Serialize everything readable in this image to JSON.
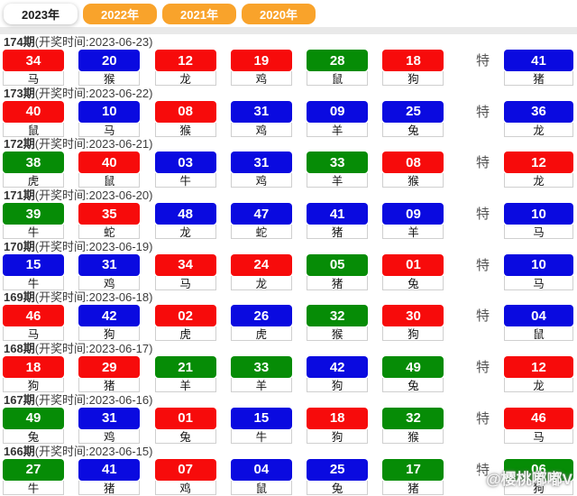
{
  "tabs": [
    {
      "label": "2023年",
      "active": true
    },
    {
      "label": "2022年",
      "active": false
    },
    {
      "label": "2021年",
      "active": false
    },
    {
      "label": "2020年",
      "active": false
    }
  ],
  "colors": {
    "red": "#f70b0b",
    "blue": "#0a0ae0",
    "green": "#068c06",
    "tab_orange": "#f9a32b"
  },
  "special_label": "特",
  "watermark": {
    "icon": "paw-icon",
    "text": "@樱桃嘟嘟V"
  },
  "rows": [
    {
      "period": "174期",
      "time": "(开奖时间:2023-06-23)",
      "numbers": [
        {
          "value": "34",
          "zodiac": "马",
          "color": "red"
        },
        {
          "value": "20",
          "zodiac": "猴",
          "color": "blue"
        },
        {
          "value": "12",
          "zodiac": "龙",
          "color": "red"
        },
        {
          "value": "19",
          "zodiac": "鸡",
          "color": "red"
        },
        {
          "value": "28",
          "zodiac": "鼠",
          "color": "green"
        },
        {
          "value": "18",
          "zodiac": "狗",
          "color": "red"
        }
      ],
      "special": {
        "value": "41",
        "zodiac": "猪",
        "color": "blue"
      }
    },
    {
      "period": "173期",
      "time": "(开奖时间:2023-06-22)",
      "numbers": [
        {
          "value": "40",
          "zodiac": "鼠",
          "color": "red"
        },
        {
          "value": "10",
          "zodiac": "马",
          "color": "blue"
        },
        {
          "value": "08",
          "zodiac": "猴",
          "color": "red"
        },
        {
          "value": "31",
          "zodiac": "鸡",
          "color": "blue"
        },
        {
          "value": "09",
          "zodiac": "羊",
          "color": "blue"
        },
        {
          "value": "25",
          "zodiac": "兔",
          "color": "blue"
        }
      ],
      "special": {
        "value": "36",
        "zodiac": "龙",
        "color": "blue"
      }
    },
    {
      "period": "172期",
      "time": "(开奖时间:2023-06-21)",
      "numbers": [
        {
          "value": "38",
          "zodiac": "虎",
          "color": "green"
        },
        {
          "value": "40",
          "zodiac": "鼠",
          "color": "red"
        },
        {
          "value": "03",
          "zodiac": "牛",
          "color": "blue"
        },
        {
          "value": "31",
          "zodiac": "鸡",
          "color": "blue"
        },
        {
          "value": "33",
          "zodiac": "羊",
          "color": "green"
        },
        {
          "value": "08",
          "zodiac": "猴",
          "color": "red"
        }
      ],
      "special": {
        "value": "12",
        "zodiac": "龙",
        "color": "red"
      }
    },
    {
      "period": "171期",
      "time": "(开奖时间:2023-06-20)",
      "numbers": [
        {
          "value": "39",
          "zodiac": "牛",
          "color": "green"
        },
        {
          "value": "35",
          "zodiac": "蛇",
          "color": "red"
        },
        {
          "value": "48",
          "zodiac": "龙",
          "color": "blue"
        },
        {
          "value": "47",
          "zodiac": "蛇",
          "color": "blue"
        },
        {
          "value": "41",
          "zodiac": "猪",
          "color": "blue"
        },
        {
          "value": "09",
          "zodiac": "羊",
          "color": "blue"
        }
      ],
      "special": {
        "value": "10",
        "zodiac": "马",
        "color": "blue"
      }
    },
    {
      "period": "170期",
      "time": "(开奖时间:2023-06-19)",
      "numbers": [
        {
          "value": "15",
          "zodiac": "牛",
          "color": "blue"
        },
        {
          "value": "31",
          "zodiac": "鸡",
          "color": "blue"
        },
        {
          "value": "34",
          "zodiac": "马",
          "color": "red"
        },
        {
          "value": "24",
          "zodiac": "龙",
          "color": "red"
        },
        {
          "value": "05",
          "zodiac": "猪",
          "color": "green"
        },
        {
          "value": "01",
          "zodiac": "兔",
          "color": "red"
        }
      ],
      "special": {
        "value": "10",
        "zodiac": "马",
        "color": "blue"
      }
    },
    {
      "period": "169期",
      "time": "(开奖时间:2023-06-18)",
      "numbers": [
        {
          "value": "46",
          "zodiac": "马",
          "color": "red"
        },
        {
          "value": "42",
          "zodiac": "狗",
          "color": "blue"
        },
        {
          "value": "02",
          "zodiac": "虎",
          "color": "red"
        },
        {
          "value": "26",
          "zodiac": "虎",
          "color": "blue"
        },
        {
          "value": "32",
          "zodiac": "猴",
          "color": "green"
        },
        {
          "value": "30",
          "zodiac": "狗",
          "color": "red"
        }
      ],
      "special": {
        "value": "04",
        "zodiac": "鼠",
        "color": "blue"
      }
    },
    {
      "period": "168期",
      "time": "(开奖时间:2023-06-17)",
      "numbers": [
        {
          "value": "18",
          "zodiac": "狗",
          "color": "red"
        },
        {
          "value": "29",
          "zodiac": "猪",
          "color": "red"
        },
        {
          "value": "21",
          "zodiac": "羊",
          "color": "green"
        },
        {
          "value": "33",
          "zodiac": "羊",
          "color": "green"
        },
        {
          "value": "42",
          "zodiac": "狗",
          "color": "blue"
        },
        {
          "value": "49",
          "zodiac": "兔",
          "color": "green"
        }
      ],
      "special": {
        "value": "12",
        "zodiac": "龙",
        "color": "red"
      }
    },
    {
      "period": "167期",
      "time": "(开奖时间:2023-06-16)",
      "numbers": [
        {
          "value": "49",
          "zodiac": "兔",
          "color": "green"
        },
        {
          "value": "31",
          "zodiac": "鸡",
          "color": "blue"
        },
        {
          "value": "01",
          "zodiac": "兔",
          "color": "red"
        },
        {
          "value": "15",
          "zodiac": "牛",
          "color": "blue"
        },
        {
          "value": "18",
          "zodiac": "狗",
          "color": "red"
        },
        {
          "value": "32",
          "zodiac": "猴",
          "color": "green"
        }
      ],
      "special": {
        "value": "46",
        "zodiac": "马",
        "color": "red"
      }
    },
    {
      "period": "166期",
      "time": "(开奖时间:2023-06-15)",
      "numbers": [
        {
          "value": "27",
          "zodiac": "牛",
          "color": "green"
        },
        {
          "value": "41",
          "zodiac": "猪",
          "color": "blue"
        },
        {
          "value": "07",
          "zodiac": "鸡",
          "color": "red"
        },
        {
          "value": "04",
          "zodiac": "鼠",
          "color": "blue"
        },
        {
          "value": "25",
          "zodiac": "兔",
          "color": "blue"
        },
        {
          "value": "17",
          "zodiac": "猪",
          "color": "green"
        }
      ],
      "special": {
        "value": "06",
        "zodiac": "狗",
        "color": "green"
      }
    }
  ]
}
